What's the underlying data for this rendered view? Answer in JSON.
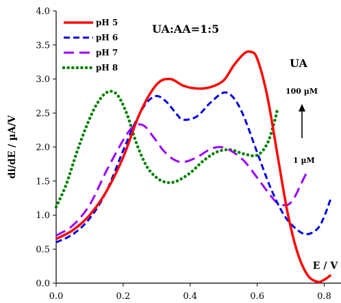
{
  "chart_data": {
    "type": "line",
    "xlabel": "E / V",
    "ylabel": "di/dE / µA/V",
    "xlim": [
      0.0,
      0.85
    ],
    "ylim": [
      0.0,
      4.0
    ],
    "x_ticks": [
      "0.0",
      "0.2",
      "0.4",
      "0.6",
      "0.8"
    ],
    "y_ticks": [
      "0.0",
      "0.5",
      "1.0",
      "1.5",
      "2.0",
      "2.5",
      "3.0",
      "3.5",
      "4.0"
    ],
    "grid": false,
    "legend_position": "top-left",
    "annotations": {
      "ratio": "UA:AA=1:5",
      "analyte": "UA",
      "upper_conc": "100 µM",
      "lower_conc": "1 µM"
    },
    "series": [
      {
        "name": "pH 5",
        "color": "#ff0000",
        "style": "solid",
        "points": [
          [
            0.0,
            0.65
          ],
          [
            0.05,
            0.78
          ],
          [
            0.1,
            1.0
          ],
          [
            0.15,
            1.35
          ],
          [
            0.2,
            1.85
          ],
          [
            0.25,
            2.5
          ],
          [
            0.3,
            2.92
          ],
          [
            0.34,
            3.0
          ],
          [
            0.38,
            2.9
          ],
          [
            0.42,
            2.86
          ],
          [
            0.46,
            2.88
          ],
          [
            0.5,
            2.98
          ],
          [
            0.53,
            3.2
          ],
          [
            0.56,
            3.37
          ],
          [
            0.58,
            3.4
          ],
          [
            0.6,
            3.3
          ],
          [
            0.63,
            2.75
          ],
          [
            0.66,
            1.9
          ],
          [
            0.69,
            1.05
          ],
          [
            0.72,
            0.45
          ],
          [
            0.75,
            0.12
          ],
          [
            0.78,
            0.02
          ],
          [
            0.8,
            0.05
          ],
          [
            0.82,
            0.12
          ]
        ]
      },
      {
        "name": "pH 6",
        "color": "#0000e0",
        "style": "dash",
        "points": [
          [
            0.0,
            0.6
          ],
          [
            0.05,
            0.72
          ],
          [
            0.1,
            0.95
          ],
          [
            0.15,
            1.35
          ],
          [
            0.2,
            1.95
          ],
          [
            0.24,
            2.4
          ],
          [
            0.27,
            2.65
          ],
          [
            0.3,
            2.75
          ],
          [
            0.33,
            2.66
          ],
          [
            0.36,
            2.48
          ],
          [
            0.38,
            2.4
          ],
          [
            0.42,
            2.45
          ],
          [
            0.46,
            2.65
          ],
          [
            0.5,
            2.8
          ],
          [
            0.53,
            2.72
          ],
          [
            0.56,
            2.45
          ],
          [
            0.6,
            1.92
          ],
          [
            0.64,
            1.4
          ],
          [
            0.68,
            1.0
          ],
          [
            0.72,
            0.78
          ],
          [
            0.75,
            0.72
          ],
          [
            0.78,
            0.8
          ],
          [
            0.8,
            0.98
          ],
          [
            0.82,
            1.25
          ]
        ]
      },
      {
        "name": "pH 7",
        "color": "#9900ff",
        "style": "dash",
        "points": [
          [
            0.0,
            0.7
          ],
          [
            0.05,
            0.85
          ],
          [
            0.1,
            1.15
          ],
          [
            0.15,
            1.65
          ],
          [
            0.2,
            2.1
          ],
          [
            0.23,
            2.3
          ],
          [
            0.26,
            2.32
          ],
          [
            0.29,
            2.15
          ],
          [
            0.32,
            1.95
          ],
          [
            0.35,
            1.82
          ],
          [
            0.38,
            1.78
          ],
          [
            0.42,
            1.85
          ],
          [
            0.46,
            1.97
          ],
          [
            0.49,
            2.0
          ],
          [
            0.52,
            1.95
          ],
          [
            0.56,
            1.8
          ],
          [
            0.6,
            1.55
          ],
          [
            0.63,
            1.35
          ],
          [
            0.66,
            1.18
          ],
          [
            0.69,
            1.15
          ],
          [
            0.71,
            1.25
          ],
          [
            0.73,
            1.45
          ],
          [
            0.75,
            1.65
          ]
        ]
      },
      {
        "name": "pH 8",
        "color": "#008000",
        "style": "dot",
        "points": [
          [
            0.0,
            1.12
          ],
          [
            0.03,
            1.45
          ],
          [
            0.06,
            1.9
          ],
          [
            0.09,
            2.3
          ],
          [
            0.12,
            2.62
          ],
          [
            0.15,
            2.8
          ],
          [
            0.18,
            2.78
          ],
          [
            0.21,
            2.5
          ],
          [
            0.24,
            2.05
          ],
          [
            0.27,
            1.72
          ],
          [
            0.3,
            1.55
          ],
          [
            0.33,
            1.48
          ],
          [
            0.36,
            1.5
          ],
          [
            0.4,
            1.62
          ],
          [
            0.44,
            1.8
          ],
          [
            0.48,
            1.93
          ],
          [
            0.52,
            1.96
          ],
          [
            0.56,
            1.9
          ],
          [
            0.6,
            1.88
          ],
          [
            0.63,
            2.05
          ],
          [
            0.65,
            2.35
          ],
          [
            0.66,
            2.55
          ]
        ]
      }
    ]
  }
}
